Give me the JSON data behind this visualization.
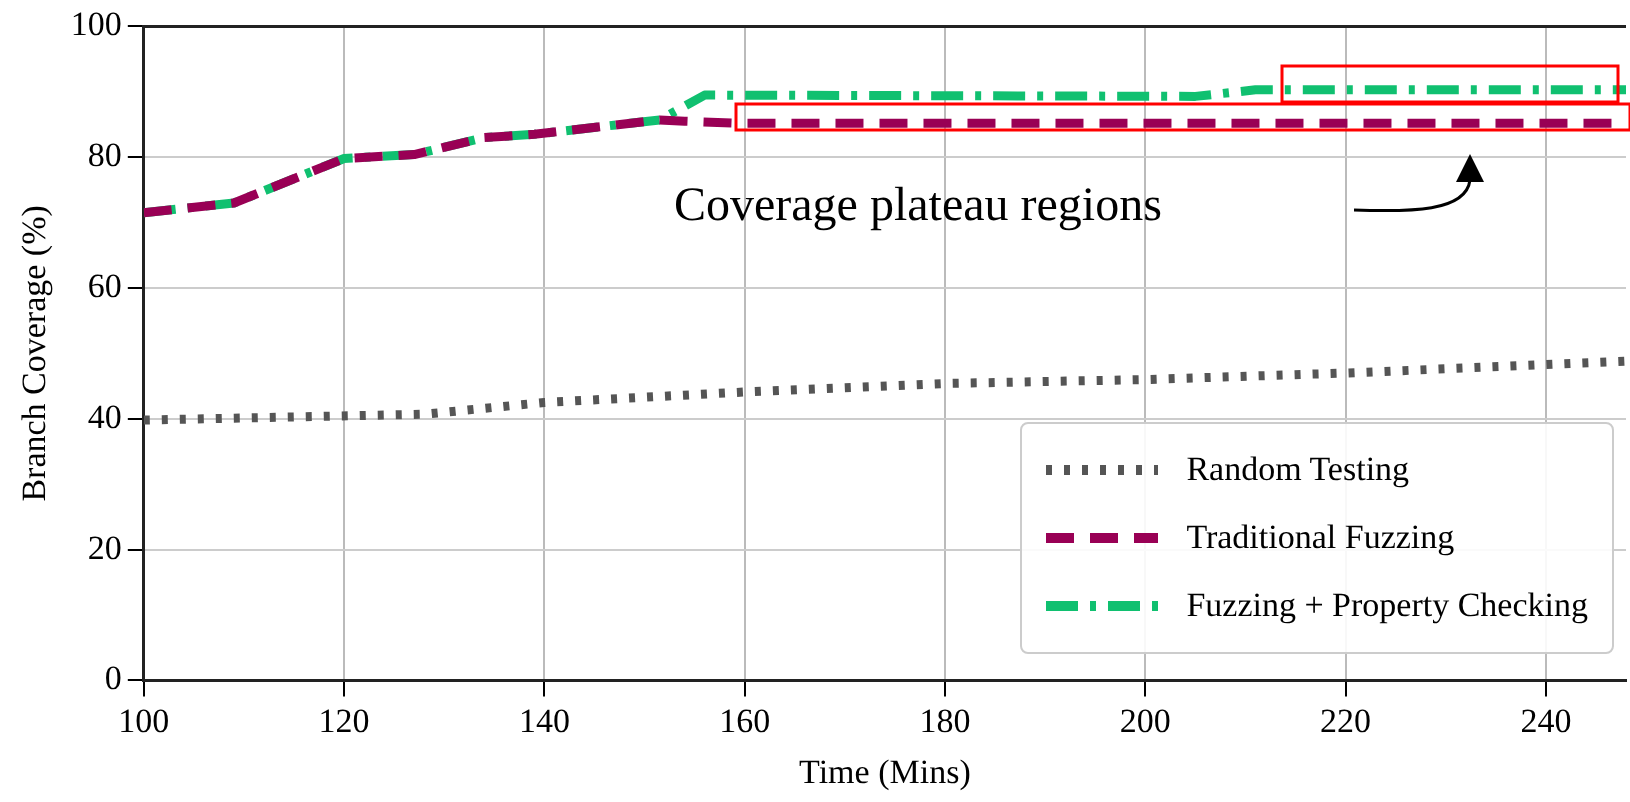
{
  "chart_data": {
    "type": "line",
    "xlabel": "Time (Mins)",
    "ylabel": "Branch Coverage (%)",
    "xlim": [
      100,
      248
    ],
    "xticks": [
      100,
      120,
      140,
      160,
      180,
      200,
      220,
      240
    ],
    "ylim": [
      0,
      100
    ],
    "yticks": [
      0,
      20,
      40,
      60,
      80,
      100
    ],
    "grid": true,
    "legend": "bottom right",
    "marker": "none",
    "annotations": [
      "Coverage plateau regions"
    ],
    "series": [
      {
        "name": "Random Testing",
        "color": "#555555",
        "line_style": "dotted",
        "x": [
          100,
          128,
          140,
          160,
          180,
          200,
          220,
          248
        ],
        "values": [
          39.8,
          40.7,
          42.5,
          44.1,
          45.4,
          46,
          47,
          48.8
        ]
      },
      {
        "name": "Traditional Fuzzing",
        "color": "#990055",
        "line_style": "dashed",
        "x": [
          100,
          109,
          120,
          127,
          134,
          139,
          151.5,
          154,
          159,
          248
        ],
        "values": [
          71.5,
          73,
          79.8,
          80.4,
          83,
          83.5,
          85.7,
          85.5,
          85.2,
          85.2
        ]
      },
      {
        "name": "Fuzzing + Property Checking",
        "color": "#10c070",
        "line_style": "dashdot",
        "x": [
          100,
          109,
          120,
          127,
          134,
          139,
          151.5,
          156,
          205,
          211,
          248
        ],
        "values": [
          71.5,
          73,
          79.8,
          80.4,
          83,
          83.5,
          85.7,
          89.5,
          89.3,
          90.3,
          90.3
        ]
      }
    ]
  }
}
